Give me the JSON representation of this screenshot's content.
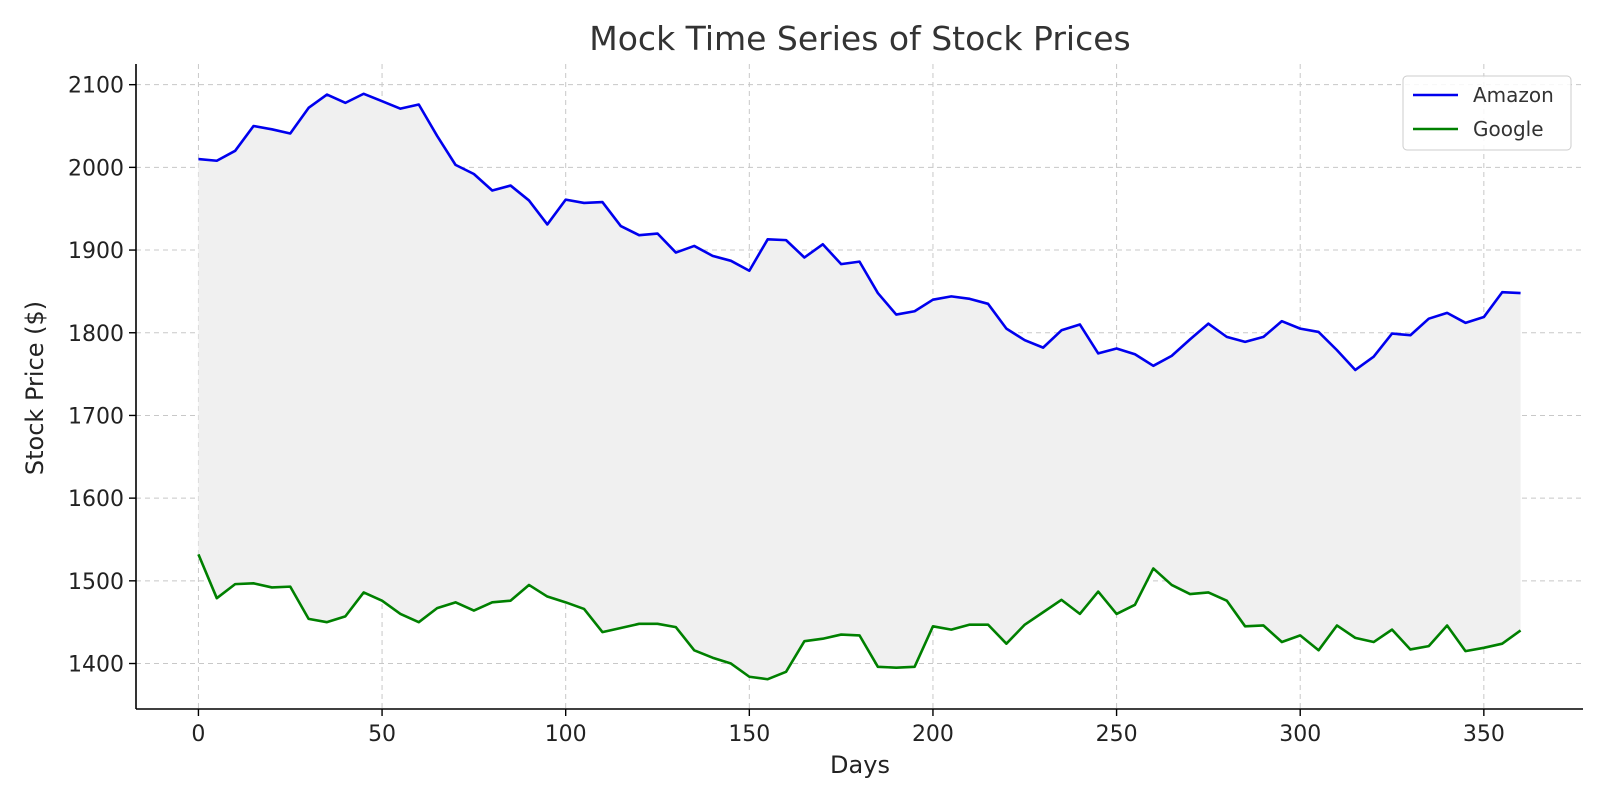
{
  "chart_data": {
    "type": "line",
    "title": "Mock Time Series of Stock Prices",
    "xlabel": "Days",
    "ylabel": "Stock Price ($)",
    "xlim": [
      -17,
      377
    ],
    "ylim": [
      1345,
      2125
    ],
    "xticks": [
      0,
      50,
      100,
      150,
      200,
      250,
      300,
      350
    ],
    "yticks": [
      1400,
      1500,
      1600,
      1700,
      1800,
      1900,
      2000,
      2100
    ],
    "grid": true,
    "legend_position": "top-right",
    "fill_between": {
      "color": "#f0f0f0"
    },
    "x": [
      0,
      5,
      10,
      15,
      20,
      25,
      30,
      35,
      40,
      45,
      50,
      55,
      60,
      65,
      70,
      75,
      80,
      85,
      90,
      95,
      100,
      105,
      110,
      115,
      120,
      125,
      130,
      135,
      140,
      145,
      150,
      155,
      160,
      165,
      170,
      175,
      180,
      185,
      190,
      195,
      200,
      205,
      210,
      215,
      220,
      225,
      230,
      235,
      240,
      245,
      250,
      255,
      260,
      265,
      270,
      275,
      280,
      285,
      290,
      295,
      300,
      305,
      310,
      315,
      320,
      325,
      330,
      335,
      340,
      345,
      350,
      355,
      360
    ],
    "series": [
      {
        "name": "Amazon",
        "color": "#0000ee",
        "values": [
          2010,
          2008,
          2020,
          2050,
          2046,
          2041,
          2072,
          2088,
          2078,
          2089,
          2080,
          2071,
          2076,
          2038,
          2003,
          1992,
          1972,
          1978,
          1960,
          1931,
          1961,
          1957,
          1958,
          1929,
          1918,
          1920,
          1897,
          1905,
          1893,
          1887,
          1875,
          1913,
          1912,
          1891,
          1907,
          1883,
          1886,
          1848,
          1822,
          1826,
          1840,
          1844,
          1841,
          1835,
          1805,
          1791,
          1782,
          1803,
          1810,
          1775,
          1781,
          1774,
          1760,
          1772,
          1792,
          1811,
          1795,
          1789,
          1795,
          1814,
          1805,
          1801,
          1779,
          1755,
          1771,
          1799,
          1797,
          1817,
          1824,
          1812,
          1819,
          1849,
          1848
        ]
      },
      {
        "name": "Google",
        "color": "#008000",
        "values": [
          1532,
          1479,
          1496,
          1497,
          1492,
          1493,
          1454,
          1450,
          1457,
          1486,
          1476,
          1460,
          1450,
          1467,
          1474,
          1464,
          1474,
          1476,
          1495,
          1481,
          1474,
          1466,
          1438,
          1443,
          1448,
          1448,
          1444,
          1416,
          1407,
          1400,
          1384,
          1381,
          1390,
          1427,
          1430,
          1435,
          1434,
          1396,
          1395,
          1396,
          1445,
          1441,
          1447,
          1447,
          1424,
          1447,
          1462,
          1477,
          1460,
          1487,
          1460,
          1471,
          1515,
          1495,
          1484,
          1486,
          1476,
          1445,
          1446,
          1426,
          1434,
          1416,
          1446,
          1431,
          1426,
          1441,
          1417,
          1421,
          1446,
          1415,
          1419,
          1424,
          1440
        ]
      }
    ]
  }
}
